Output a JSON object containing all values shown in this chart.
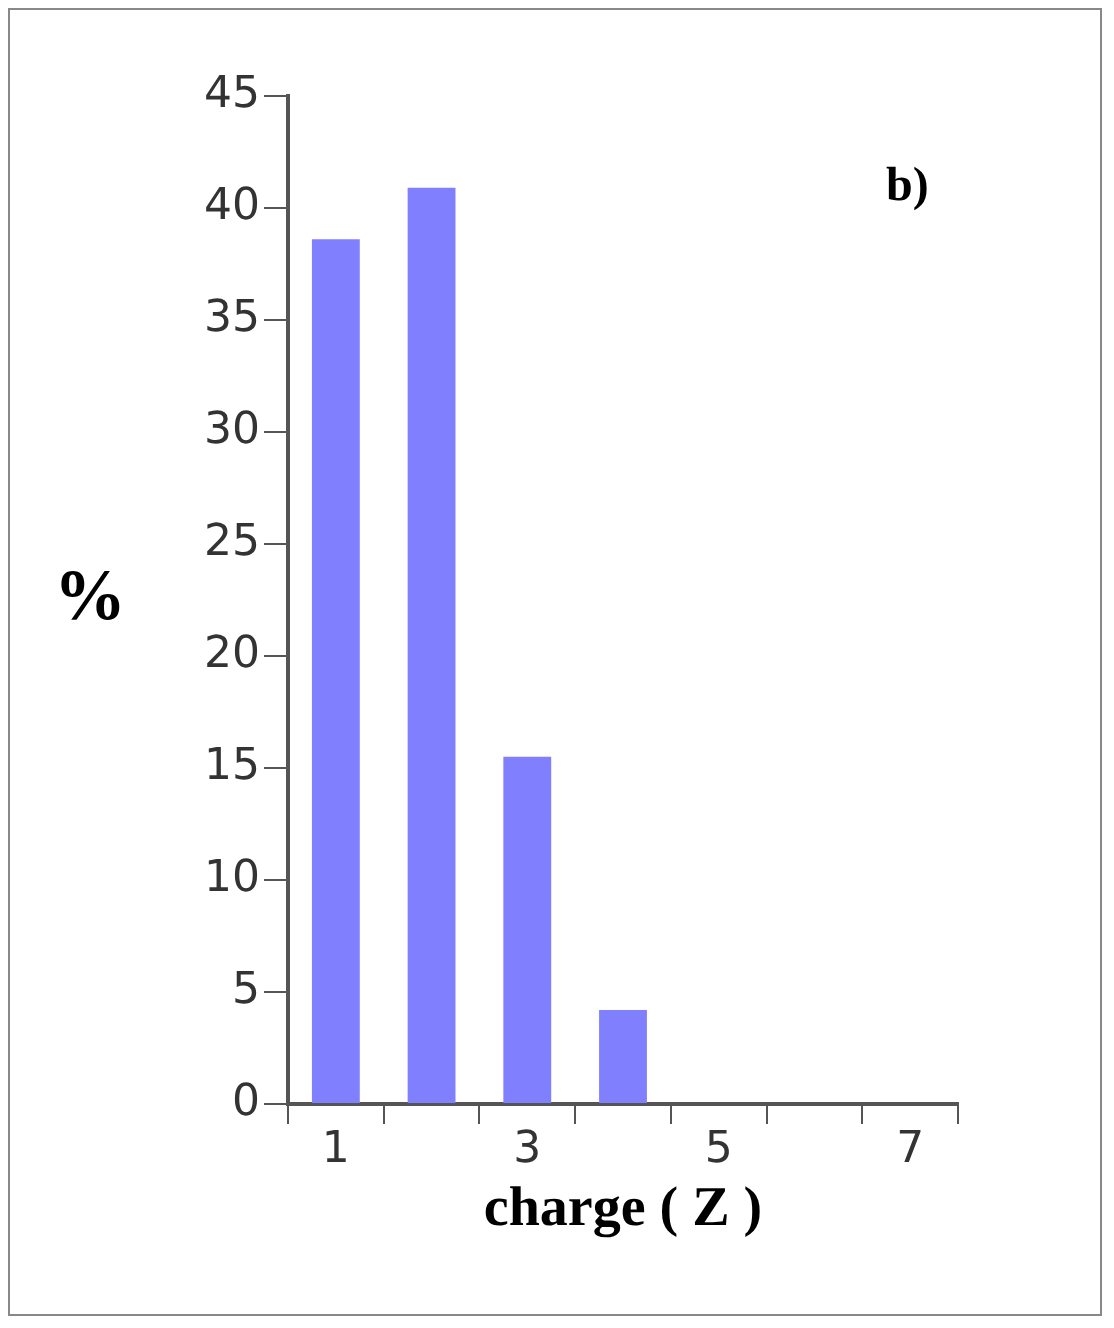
{
  "chart_data": {
    "type": "bar",
    "xlabel": "charge ( Z )",
    "ylabel": "%",
    "annotations": [
      "b)"
    ],
    "categories": [
      "1",
      null,
      "3",
      null,
      "5",
      null,
      "7"
    ],
    "values": [
      38.6,
      40.9,
      15.5,
      4.2,
      0,
      0,
      0
    ],
    "color": "#8080ff",
    "ylim": [
      0,
      45
    ],
    "yticks": [
      0,
      5,
      10,
      15,
      20,
      25,
      30,
      35,
      40,
      45
    ],
    "grid": false,
    "legend": false
  }
}
